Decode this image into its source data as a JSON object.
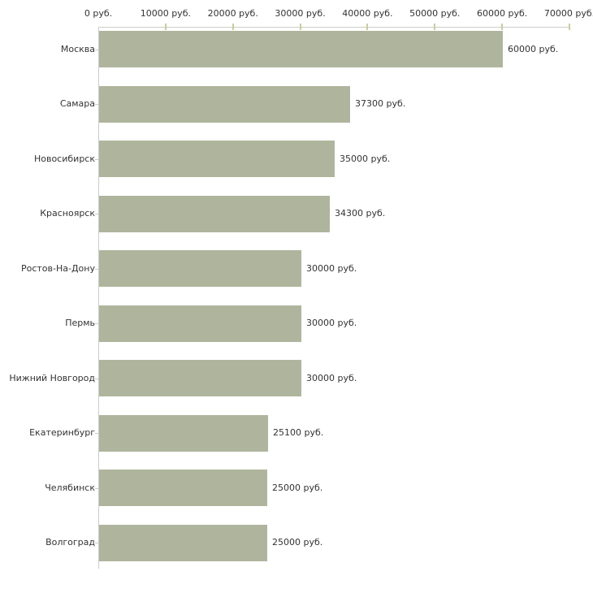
{
  "chart_data": {
    "type": "bar",
    "orientation": "horizontal",
    "title": "",
    "xlabel": "",
    "ylabel": "",
    "categories": [
      "Москва",
      "Самара",
      "Новосибирск",
      "Красноярск",
      "Ростов-На-Дону",
      "Пермь",
      "Нижний Новгород",
      "Екатеринбург",
      "Челябинск",
      "Волгоград"
    ],
    "values": [
      60000,
      37300,
      35000,
      34300,
      30000,
      30000,
      30000,
      25100,
      25000,
      25000
    ],
    "value_labels": [
      "60000 руб.",
      "37300 руб.",
      "35000 руб.",
      "34300 руб.",
      "30000 руб.",
      "30000 руб.",
      "30000 руб.",
      "25100 руб.",
      "25000 руб.",
      "25000 руб."
    ],
    "xlim": [
      0,
      70000
    ],
    "x_tick_values": [
      0,
      10000,
      20000,
      30000,
      40000,
      50000,
      60000,
      70000
    ],
    "x_tick_labels": [
      "0 руб.",
      "10000 руб.",
      "20000 руб.",
      "30000 руб.",
      "40000 руб.",
      "50000 руб.",
      "60000 руб.",
      "70000 руб."
    ],
    "grid": false,
    "legend": "none",
    "colors": {
      "bar": "#afb59d",
      "axis_line": "#cccccc",
      "x_tick_mark": "#cbcc9c",
      "y_tick_mark": "#cccccc",
      "text": "#333333",
      "background": "#ffffff"
    }
  }
}
